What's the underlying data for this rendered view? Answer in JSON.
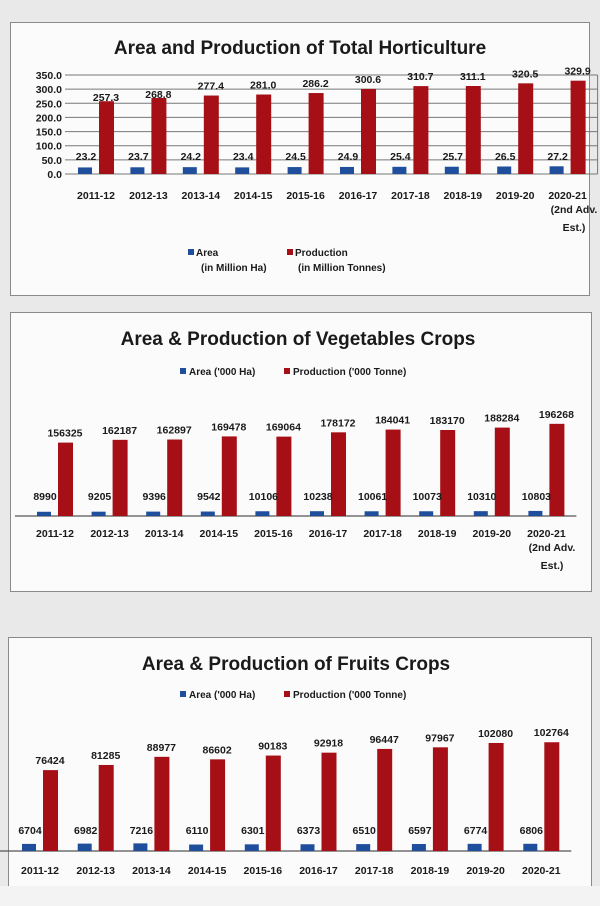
{
  "colors": {
    "area": "#1f4e9c",
    "production": "#a50f15"
  },
  "chart_data": [
    {
      "type": "bar",
      "title": "Area and Production of Total Horticulture",
      "categories": [
        "2011-12",
        "2012-13",
        "2013-14",
        "2014-15",
        "2015-16",
        "2016-17",
        "2017-18",
        "2018-19",
        "2019-20",
        "2020-21"
      ],
      "category_notes": [
        "",
        "",
        "",
        "",
        "",
        "",
        "",
        "",
        "",
        "(2nd Adv.|Est.)"
      ],
      "series": [
        {
          "name": "Area",
          "unit": "(in Million Ha)",
          "values": [
            23.2,
            23.7,
            24.2,
            23.4,
            24.5,
            24.9,
            25.4,
            25.7,
            26.5,
            27.2
          ]
        },
        {
          "name": "Production",
          "unit": "(in Million Tonnes)",
          "values": [
            257.3,
            268.8,
            277.4,
            281.0,
            286.2,
            300.6,
            310.7,
            311.1,
            320.5,
            329.9
          ]
        }
      ],
      "ylim": [
        0,
        350
      ],
      "yticks": [
        "0.0",
        "50.0",
        "100.0",
        "150.0",
        "200.0",
        "250.0",
        "300.0",
        "350.0"
      ],
      "grid": true,
      "legend": "bottom"
    },
    {
      "type": "bar",
      "title": "Area & Production of Vegetables Crops",
      "categories": [
        "2011-12",
        "2012-13",
        "2013-14",
        "2014-15",
        "2015-16",
        "2016-17",
        "2017-18",
        "2018-19",
        "2019-20",
        "2020-21"
      ],
      "category_notes": [
        "",
        "",
        "",
        "",
        "",
        "",
        "",
        "",
        "",
        "(2nd Adv.|Est.)"
      ],
      "series": [
        {
          "name": "Area ('000 Ha)",
          "values": [
            8990,
            9205,
            9396,
            9542,
            10106,
            10238,
            10061,
            10073,
            10310,
            10803
          ]
        },
        {
          "name": "Production ('000 Tonne)",
          "values": [
            156325,
            162187,
            162897,
            169478,
            169064,
            178172,
            184041,
            183170,
            188284,
            196268
          ]
        }
      ],
      "grid": false,
      "legend": "top"
    },
    {
      "type": "bar",
      "title": "Area & Production of Fruits Crops",
      "categories": [
        "2011-12",
        "2012-13",
        "2013-14",
        "2014-15",
        "2015-16",
        "2016-17",
        "2017-18",
        "2018-19",
        "2019-20",
        "2020-21"
      ],
      "series": [
        {
          "name": "Area ('000 Ha)",
          "values": [
            6704,
            6982,
            7216,
            6110,
            6301,
            6373,
            6510,
            6597,
            6774,
            6806
          ]
        },
        {
          "name": "Production ('000 Tonne)",
          "values": [
            76424,
            81285,
            88977,
            86602,
            90183,
            92918,
            96447,
            97967,
            102080,
            102764
          ]
        }
      ],
      "grid": false,
      "legend": "top"
    }
  ]
}
